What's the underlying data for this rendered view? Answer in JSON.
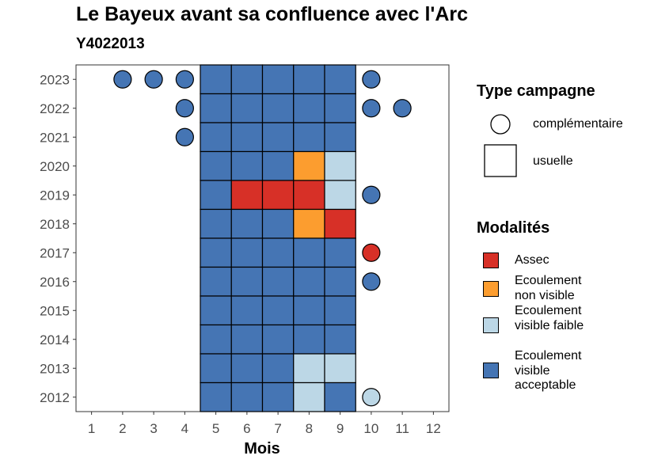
{
  "chart_data": {
    "type": "heatmap",
    "title": "Le Bayeux avant sa confluence avec l'Arc",
    "subtitle": "Y4022013",
    "xlabel": "Mois",
    "ylabel": "",
    "x_ticks": [
      1,
      2,
      3,
      4,
      5,
      6,
      7,
      8,
      9,
      10,
      11,
      12
    ],
    "y_ticks": [
      2012,
      2013,
      2014,
      2015,
      2016,
      2017,
      2018,
      2019,
      2020,
      2021,
      2022,
      2023
    ],
    "xlim": [
      0.5,
      12.5
    ],
    "ylim": [
      2011.5,
      2023.5
    ],
    "grid": false,
    "legend_placement": "right",
    "colors": {
      "Assec": "#d73027",
      "Ecoulement non visible": "#fc9d2f",
      "Ecoulement visible faible": "#bcd7e6",
      "Ecoulement visible acceptable": "#4575b4"
    },
    "points": [
      {
        "year": 2023,
        "month": 2,
        "type": "complémentaire",
        "modalite": "Ecoulement visible acceptable"
      },
      {
        "year": 2023,
        "month": 3,
        "type": "complémentaire",
        "modalite": "Ecoulement visible acceptable"
      },
      {
        "year": 2023,
        "month": 4,
        "type": "complémentaire",
        "modalite": "Ecoulement visible acceptable"
      },
      {
        "year": 2023,
        "month": 5,
        "type": "usuelle",
        "modalite": "Ecoulement visible acceptable"
      },
      {
        "year": 2023,
        "month": 6,
        "type": "usuelle",
        "modalite": "Ecoulement visible acceptable"
      },
      {
        "year": 2023,
        "month": 7,
        "type": "usuelle",
        "modalite": "Ecoulement visible acceptable"
      },
      {
        "year": 2023,
        "month": 8,
        "type": "usuelle",
        "modalite": "Ecoulement visible acceptable"
      },
      {
        "year": 2023,
        "month": 9,
        "type": "usuelle",
        "modalite": "Ecoulement visible acceptable"
      },
      {
        "year": 2023,
        "month": 10,
        "type": "complémentaire",
        "modalite": "Ecoulement visible acceptable"
      },
      {
        "year": 2022,
        "month": 4,
        "type": "complémentaire",
        "modalite": "Ecoulement visible acceptable"
      },
      {
        "year": 2022,
        "month": 5,
        "type": "usuelle",
        "modalite": "Ecoulement visible acceptable"
      },
      {
        "year": 2022,
        "month": 6,
        "type": "usuelle",
        "modalite": "Ecoulement visible acceptable"
      },
      {
        "year": 2022,
        "month": 7,
        "type": "usuelle",
        "modalite": "Ecoulement visible acceptable"
      },
      {
        "year": 2022,
        "month": 8,
        "type": "usuelle",
        "modalite": "Ecoulement visible acceptable"
      },
      {
        "year": 2022,
        "month": 9,
        "type": "usuelle",
        "modalite": "Ecoulement visible acceptable"
      },
      {
        "year": 2022,
        "month": 10,
        "type": "complémentaire",
        "modalite": "Ecoulement visible acceptable"
      },
      {
        "year": 2022,
        "month": 11,
        "type": "complémentaire",
        "modalite": "Ecoulement visible acceptable"
      },
      {
        "year": 2021,
        "month": 4,
        "type": "complémentaire",
        "modalite": "Ecoulement visible acceptable"
      },
      {
        "year": 2021,
        "month": 5,
        "type": "usuelle",
        "modalite": "Ecoulement visible acceptable"
      },
      {
        "year": 2021,
        "month": 6,
        "type": "usuelle",
        "modalite": "Ecoulement visible acceptable"
      },
      {
        "year": 2021,
        "month": 7,
        "type": "usuelle",
        "modalite": "Ecoulement visible acceptable"
      },
      {
        "year": 2021,
        "month": 8,
        "type": "usuelle",
        "modalite": "Ecoulement visible acceptable"
      },
      {
        "year": 2021,
        "month": 9,
        "type": "usuelle",
        "modalite": "Ecoulement visible acceptable"
      },
      {
        "year": 2020,
        "month": 5,
        "type": "usuelle",
        "modalite": "Ecoulement visible acceptable"
      },
      {
        "year": 2020,
        "month": 6,
        "type": "usuelle",
        "modalite": "Ecoulement visible acceptable"
      },
      {
        "year": 2020,
        "month": 7,
        "type": "usuelle",
        "modalite": "Ecoulement visible acceptable"
      },
      {
        "year": 2020,
        "month": 8,
        "type": "usuelle",
        "modalite": "Ecoulement non visible"
      },
      {
        "year": 2020,
        "month": 9,
        "type": "usuelle",
        "modalite": "Ecoulement visible faible"
      },
      {
        "year": 2019,
        "month": 5,
        "type": "usuelle",
        "modalite": "Ecoulement visible acceptable"
      },
      {
        "year": 2019,
        "month": 6,
        "type": "usuelle",
        "modalite": "Assec"
      },
      {
        "year": 2019,
        "month": 7,
        "type": "usuelle",
        "modalite": "Assec"
      },
      {
        "year": 2019,
        "month": 8,
        "type": "usuelle",
        "modalite": "Assec"
      },
      {
        "year": 2019,
        "month": 9,
        "type": "usuelle",
        "modalite": "Ecoulement visible faible"
      },
      {
        "year": 2019,
        "month": 10,
        "type": "complémentaire",
        "modalite": "Ecoulement visible acceptable"
      },
      {
        "year": 2018,
        "month": 5,
        "type": "usuelle",
        "modalite": "Ecoulement visible acceptable"
      },
      {
        "year": 2018,
        "month": 6,
        "type": "usuelle",
        "modalite": "Ecoulement visible acceptable"
      },
      {
        "year": 2018,
        "month": 7,
        "type": "usuelle",
        "modalite": "Ecoulement visible acceptable"
      },
      {
        "year": 2018,
        "month": 8,
        "type": "usuelle",
        "modalite": "Ecoulement non visible"
      },
      {
        "year": 2018,
        "month": 9,
        "type": "usuelle",
        "modalite": "Assec"
      },
      {
        "year": 2017,
        "month": 5,
        "type": "usuelle",
        "modalite": "Ecoulement visible acceptable"
      },
      {
        "year": 2017,
        "month": 6,
        "type": "usuelle",
        "modalite": "Ecoulement visible acceptable"
      },
      {
        "year": 2017,
        "month": 7,
        "type": "usuelle",
        "modalite": "Ecoulement visible acceptable"
      },
      {
        "year": 2017,
        "month": 8,
        "type": "usuelle",
        "modalite": "Ecoulement visible acceptable"
      },
      {
        "year": 2017,
        "month": 9,
        "type": "usuelle",
        "modalite": "Ecoulement visible acceptable"
      },
      {
        "year": 2017,
        "month": 10,
        "type": "complémentaire",
        "modalite": "Assec"
      },
      {
        "year": 2016,
        "month": 5,
        "type": "usuelle",
        "modalite": "Ecoulement visible acceptable"
      },
      {
        "year": 2016,
        "month": 6,
        "type": "usuelle",
        "modalite": "Ecoulement visible acceptable"
      },
      {
        "year": 2016,
        "month": 7,
        "type": "usuelle",
        "modalite": "Ecoulement visible acceptable"
      },
      {
        "year": 2016,
        "month": 8,
        "type": "usuelle",
        "modalite": "Ecoulement visible acceptable"
      },
      {
        "year": 2016,
        "month": 9,
        "type": "usuelle",
        "modalite": "Ecoulement visible acceptable"
      },
      {
        "year": 2016,
        "month": 10,
        "type": "complémentaire",
        "modalite": "Ecoulement visible acceptable"
      },
      {
        "year": 2015,
        "month": 5,
        "type": "usuelle",
        "modalite": "Ecoulement visible acceptable"
      },
      {
        "year": 2015,
        "month": 6,
        "type": "usuelle",
        "modalite": "Ecoulement visible acceptable"
      },
      {
        "year": 2015,
        "month": 7,
        "type": "usuelle",
        "modalite": "Ecoulement visible acceptable"
      },
      {
        "year": 2015,
        "month": 8,
        "type": "usuelle",
        "modalite": "Ecoulement visible acceptable"
      },
      {
        "year": 2015,
        "month": 9,
        "type": "usuelle",
        "modalite": "Ecoulement visible acceptable"
      },
      {
        "year": 2014,
        "month": 5,
        "type": "usuelle",
        "modalite": "Ecoulement visible acceptable"
      },
      {
        "year": 2014,
        "month": 6,
        "type": "usuelle",
        "modalite": "Ecoulement visible acceptable"
      },
      {
        "year": 2014,
        "month": 7,
        "type": "usuelle",
        "modalite": "Ecoulement visible acceptable"
      },
      {
        "year": 2014,
        "month": 8,
        "type": "usuelle",
        "modalite": "Ecoulement visible acceptable"
      },
      {
        "year": 2014,
        "month": 9,
        "type": "usuelle",
        "modalite": "Ecoulement visible acceptable"
      },
      {
        "year": 2013,
        "month": 5,
        "type": "usuelle",
        "modalite": "Ecoulement visible acceptable"
      },
      {
        "year": 2013,
        "month": 6,
        "type": "usuelle",
        "modalite": "Ecoulement visible acceptable"
      },
      {
        "year": 2013,
        "month": 7,
        "type": "usuelle",
        "modalite": "Ecoulement visible acceptable"
      },
      {
        "year": 2013,
        "month": 8,
        "type": "usuelle",
        "modalite": "Ecoulement visible faible"
      },
      {
        "year": 2013,
        "month": 9,
        "type": "usuelle",
        "modalite": "Ecoulement visible faible"
      },
      {
        "year": 2012,
        "month": 5,
        "type": "usuelle",
        "modalite": "Ecoulement visible acceptable"
      },
      {
        "year": 2012,
        "month": 6,
        "type": "usuelle",
        "modalite": "Ecoulement visible acceptable"
      },
      {
        "year": 2012,
        "month": 7,
        "type": "usuelle",
        "modalite": "Ecoulement visible acceptable"
      },
      {
        "year": 2012,
        "month": 8,
        "type": "usuelle",
        "modalite": "Ecoulement visible faible"
      },
      {
        "year": 2012,
        "month": 9,
        "type": "usuelle",
        "modalite": "Ecoulement visible acceptable"
      },
      {
        "year": 2012,
        "month": 10,
        "type": "complémentaire",
        "modalite": "Ecoulement visible faible"
      }
    ]
  },
  "legend": {
    "type_title": "Type campagne",
    "type_items": [
      {
        "label": "complémentaire",
        "shape": "circle"
      },
      {
        "label": "usuelle",
        "shape": "square"
      }
    ],
    "mod_title": "Modalités",
    "mod_items": [
      {
        "label": "Assec",
        "color": "#d73027"
      },
      {
        "label": "Ecoulement non visible",
        "color": "#fc9d2f"
      },
      {
        "label": "Ecoulement visible faible",
        "color": "#bcd7e6"
      },
      {
        "label": "Ecoulement visible acceptable",
        "color": "#4575b4"
      }
    ]
  }
}
